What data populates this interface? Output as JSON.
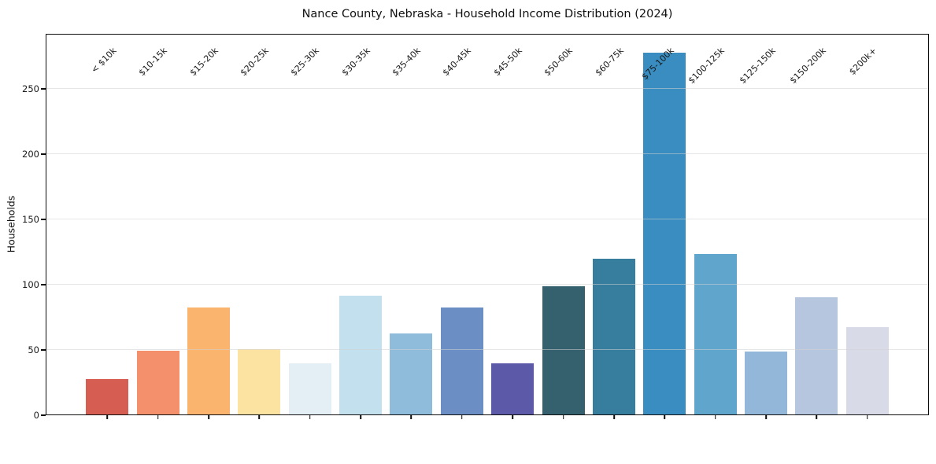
{
  "chart_data": {
    "type": "bar",
    "title": "Nance County, Nebraska - Household Income Distribution (2024)",
    "xlabel": "",
    "ylabel": "Households",
    "categories": [
      "< $10k",
      "$10-15k",
      "$15-20k",
      "$20-25k",
      "$25-30k",
      "$30-35k",
      "$35-40k",
      "$40-45k",
      "$45-50k",
      "$50-60k",
      "$60-75k",
      "$75-100k",
      "$100-125k",
      "$125-150k",
      "$150-200k",
      "$200k+"
    ],
    "values": [
      27,
      49,
      82,
      50,
      39,
      91,
      62,
      82,
      39,
      98,
      119,
      277,
      123,
      48,
      90,
      67
    ],
    "bar_colors": [
      "#d65d52",
      "#f4906c",
      "#fab46e",
      "#fde3a2",
      "#e3eff5",
      "#c2e0ed",
      "#8fbcdb",
      "#6b8fc4",
      "#5c5aa8",
      "#35616f",
      "#377d9e",
      "#398dc0",
      "#5fa5cc",
      "#92b7d8",
      "#b5c6de",
      "#d9dae7"
    ],
    "yticks": [
      0,
      50,
      100,
      150,
      200,
      250
    ],
    "ylim": [
      0,
      292
    ],
    "grid": true,
    "legend_position": "none",
    "background_color": "#ffffff",
    "gridline_color": "#e7e7e7",
    "axis_color": "#0d0d0d"
  }
}
